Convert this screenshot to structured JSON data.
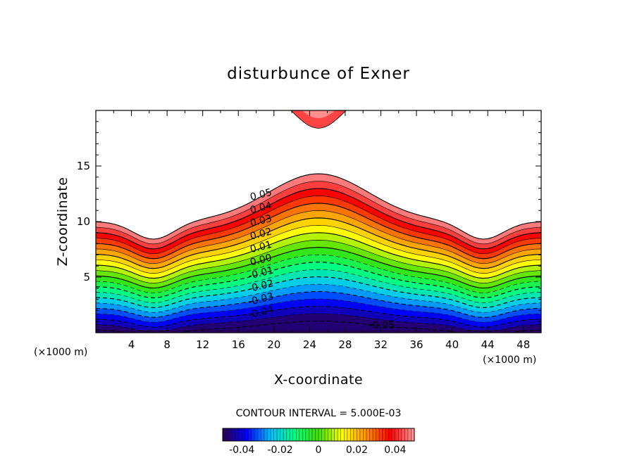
{
  "chart_data": {
    "type": "contour",
    "title": "disturbunce of Exner",
    "xlabel": "X-coordinate",
    "ylabel": "Z-coordinate",
    "x_unit": "(×1000 m)",
    "x_unit_right": "(×1000 m)",
    "xlim": [
      0,
      50
    ],
    "ylim": [
      0,
      20
    ],
    "xticks": [
      "4",
      "8",
      "12",
      "16",
      "20",
      "24",
      "28",
      "32",
      "36",
      "40",
      "44",
      "48"
    ],
    "yticks": [
      "5",
      "10",
      "15"
    ],
    "contour_interval_text": "CONTOUR INTERVAL = 5.000E-03",
    "contour_interval": 0.005,
    "levels_min": -0.05,
    "levels_max": 0.05,
    "negative_contours": "dashed",
    "contour_labels": [
      "0.05",
      "0.04",
      "0.03",
      "0.02",
      "0.01",
      "0.00",
      "-0.01",
      "-0.02",
      "-0.03",
      "-0.04",
      "-0.05"
    ],
    "colorbar": {
      "ticks": [
        "-0.04",
        "-0.02",
        "0",
        "0.02",
        "0.04"
      ],
      "range": [
        -0.05,
        0.05
      ]
    },
    "colormap": [
      "#2a0050",
      "#0000ff",
      "#00c0ff",
      "#00ff80",
      "#40e000",
      "#ffff00",
      "#ff9000",
      "#ff0000",
      "#ff9a9a"
    ]
  }
}
